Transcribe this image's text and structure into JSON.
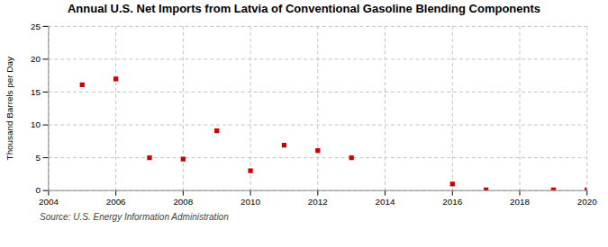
{
  "chart_data": {
    "type": "scatter",
    "title": "Annual U.S. Net Imports from Latvia of Conventional Gasoline Blending Components",
    "ylabel": "Thousand Barrels per Day",
    "source": "Source: U.S. Energy Information Administration",
    "x": [
      2005,
      2006,
      2007,
      2008,
      2009,
      2010,
      2011,
      2012,
      2013,
      2016,
      2017,
      2019,
      2020
    ],
    "values": [
      16.1,
      17.0,
      5.0,
      4.8,
      9.1,
      3.0,
      6.9,
      6.1,
      5.0,
      1.0,
      0.1,
      0.1,
      0.1
    ],
    "color": "#cc0000",
    "marker": "square",
    "xlim": [
      2004,
      2020
    ],
    "ylim": [
      0,
      25
    ],
    "xticks": [
      2004,
      2006,
      2008,
      2010,
      2012,
      2014,
      2016,
      2018,
      2020
    ],
    "yticks": [
      0,
      5,
      10,
      15,
      20,
      25
    ],
    "grid": true
  }
}
